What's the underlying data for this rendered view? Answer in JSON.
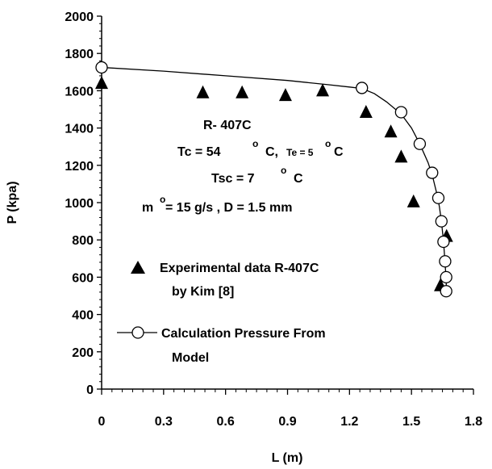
{
  "chart_data": {
    "type": "scatter",
    "xlabel": "L (m)",
    "ylabel": "P (kpa)",
    "xlim": [
      0,
      1.8
    ],
    "ylim": [
      0,
      2000
    ],
    "xticks": [
      "0",
      "0.3",
      "0.6",
      "0.9",
      "1.2",
      "1.5",
      "1.8"
    ],
    "yticks": [
      "0",
      "200",
      "400",
      "600",
      "800",
      "1000",
      "1200",
      "1400",
      "1600",
      "1800",
      "2000"
    ],
    "annotations": {
      "refrigerant": "R- 407C",
      "tc_label": "Tc = 54",
      "tc_unit": "C,",
      "te_label": "Te = 5",
      "te_unit": "C",
      "tsc_label": "Tsc = 7",
      "tsc_unit": "C",
      "m_label": "m",
      "m_value": "= 15 g/s , D = 1.5 mm",
      "degree": "o"
    },
    "legend": {
      "experimental_line1": "Experimental data R-407C",
      "experimental_line2": "by Kim [8]",
      "model_line1": "Calculation Pressure From",
      "model_line2": "Model"
    },
    "series": [
      {
        "name": "Experimental data R-407C by Kim [8]",
        "marker": "filled-triangle",
        "x": [
          0.0,
          0.49,
          0.68,
          0.89,
          1.07,
          1.28,
          1.4,
          1.45,
          1.51,
          1.64,
          1.67
        ],
        "y": [
          1640,
          1590,
          1590,
          1575,
          1600,
          1485,
          1380,
          1245,
          1005,
          555,
          820
        ]
      },
      {
        "name": "Calculation Pressure From Model",
        "marker": "open-circle",
        "x": [
          0.0,
          1.26,
          1.45,
          1.54,
          1.6,
          1.63,
          1.645,
          1.655,
          1.663,
          1.668,
          1.668
        ],
        "y": [
          1725,
          1615,
          1485,
          1315,
          1160,
          1025,
          900,
          790,
          685,
          600,
          525
        ]
      }
    ],
    "model_curve": {
      "x": [
        0.0,
        0.3,
        0.6,
        0.9,
        1.1,
        1.2,
        1.26,
        1.32,
        1.38,
        1.45,
        1.5,
        1.54,
        1.58,
        1.6,
        1.62,
        1.635,
        1.645,
        1.655,
        1.662,
        1.667,
        1.67
      ],
      "y": [
        1725,
        1705,
        1680,
        1655,
        1632,
        1620,
        1612,
        1585,
        1540,
        1475,
        1400,
        1315,
        1215,
        1150,
        1060,
        980,
        900,
        790,
        685,
        600,
        520
      ]
    },
    "grid": false
  }
}
